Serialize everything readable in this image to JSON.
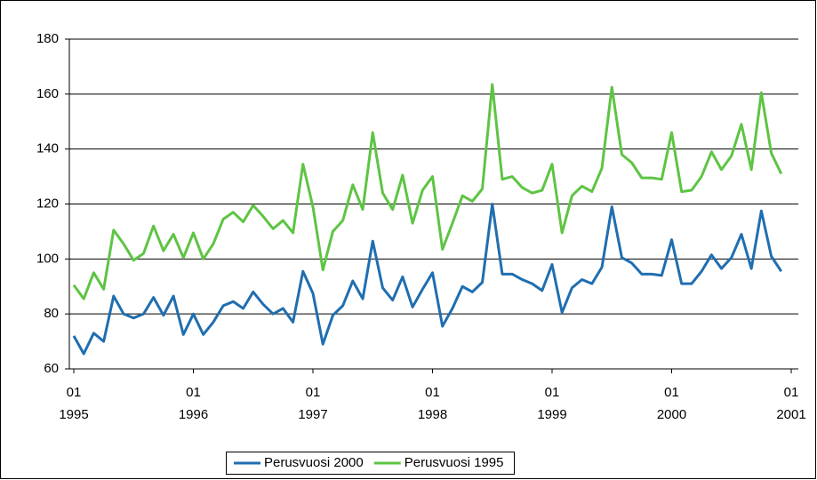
{
  "chart_data": {
    "type": "line",
    "x": [
      "1995-01",
      "1995-02",
      "1995-03",
      "1995-04",
      "1995-05",
      "1995-06",
      "1995-07",
      "1995-08",
      "1995-09",
      "1995-10",
      "1995-11",
      "1995-12",
      "1996-01",
      "1996-02",
      "1996-03",
      "1996-04",
      "1996-05",
      "1996-06",
      "1996-07",
      "1996-08",
      "1996-09",
      "1996-10",
      "1996-11",
      "1996-12",
      "1997-01",
      "1997-02",
      "1997-03",
      "1997-04",
      "1997-05",
      "1997-06",
      "1997-07",
      "1997-08",
      "1997-09",
      "1997-10",
      "1997-11",
      "1997-12",
      "1998-01",
      "1998-02",
      "1998-03",
      "1998-04",
      "1998-05",
      "1998-06",
      "1998-07",
      "1998-08",
      "1998-09",
      "1998-10",
      "1998-11",
      "1998-12",
      "1999-01",
      "1999-02",
      "1999-03",
      "1999-04",
      "1999-05",
      "1999-06",
      "1999-07",
      "1999-08",
      "1999-09",
      "1999-10",
      "1999-11",
      "1999-12",
      "2000-01",
      "2000-02",
      "2000-03",
      "2000-04",
      "2000-05",
      "2000-06",
      "2000-07",
      "2000-08",
      "2000-09",
      "2000-10",
      "2000-11",
      "2000-12"
    ],
    "series": [
      {
        "name": "Perusvuosi 2000",
        "color": "#1f6eb0",
        "values": [
          72,
          65.5,
          73,
          70,
          86.5,
          80,
          78.5,
          80,
          86,
          79.5,
          86.5,
          72.5,
          80,
          72.5,
          77,
          83,
          84.5,
          82,
          88,
          83.5,
          80,
          82,
          77,
          95.5,
          87.5,
          69,
          79.5,
          83,
          92,
          85.5,
          106.5,
          89.5,
          85,
          93.5,
          82.5,
          89,
          95,
          75.5,
          82,
          90,
          88,
          91.5,
          120,
          94.5,
          94.5,
          92.5,
          91,
          88.5,
          98,
          80.5,
          89.5,
          92.5,
          91,
          97,
          119,
          100.5,
          98.5,
          94.5,
          94.5,
          94,
          107,
          91,
          91,
          95.5,
          101.5,
          96.5,
          100.5,
          109,
          96.5,
          117.5,
          101,
          95.5
        ]
      },
      {
        "name": "Perusvuosi 1995",
        "color": "#5ec443",
        "values": [
          90.5,
          85.5,
          95,
          89,
          110.5,
          105.5,
          99.5,
          102,
          112,
          103,
          109,
          100.5,
          109.5,
          100,
          105.5,
          114.5,
          117,
          113.5,
          119.5,
          115.5,
          111,
          114,
          109.5,
          134.5,
          119,
          96,
          110,
          114,
          127,
          118,
          146,
          124,
          118,
          130.5,
          113,
          125,
          130,
          103.5,
          113,
          123,
          121,
          125.5,
          163.5,
          129,
          130,
          126,
          124,
          125,
          134.5,
          109.5,
          123,
          126.5,
          124.5,
          133,
          162.5,
          138,
          135,
          129.5,
          129.5,
          129,
          146,
          124.5,
          125,
          130,
          139,
          132.5,
          137.5,
          149,
          132.5,
          160.5,
          138.5,
          131
        ]
      }
    ],
    "xlim": [
      "1995-01",
      "2001-01"
    ],
    "xticks": [
      {
        "value": "1995-01",
        "label": [
          "01",
          "1995"
        ]
      },
      {
        "value": "1996-01",
        "label": [
          "01",
          "1996"
        ]
      },
      {
        "value": "1997-01",
        "label": [
          "01",
          "1997"
        ]
      },
      {
        "value": "1998-01",
        "label": [
          "01",
          "1998"
        ]
      },
      {
        "value": "1999-01",
        "label": [
          "01",
          "1999"
        ]
      },
      {
        "value": "2000-01",
        "label": [
          "01",
          "2000"
        ]
      },
      {
        "value": "2001-01",
        "label": [
          "01",
          "2001"
        ]
      }
    ],
    "ylim": [
      60,
      180
    ],
    "yticks": [
      60,
      80,
      100,
      120,
      140,
      160,
      180
    ],
    "grid": true,
    "legend": "bottom"
  }
}
